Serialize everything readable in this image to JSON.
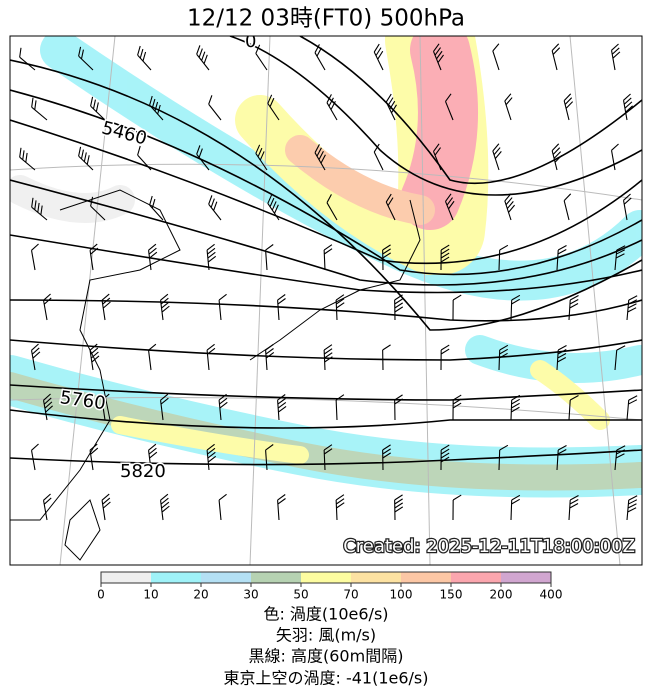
{
  "title": "12/12  03時(FT0)     500hPa",
  "map": {
    "contour_labels": [
      "0",
      "5460",
      "5760",
      "5820"
    ],
    "created": "Created: 2025-12-11T18:00:00Z"
  },
  "colorbar": {
    "ticks": [
      0,
      10,
      20,
      30,
      50,
      70,
      100,
      150,
      200,
      400
    ],
    "colors": [
      "#efefef",
      "#9ff2f8",
      "#b4e0f4",
      "#b6d2b2",
      "#fdfca0",
      "#fde2a2",
      "#fcc7a5",
      "#fba6ae",
      "#d1a6d0"
    ]
  },
  "caption": [
    "色: 渦度(10e6/s)",
    "矢羽: 風(m/s)",
    "黒線: 高度(60m間隔)",
    "東京上空の渦度: -41(1e6/s)"
  ]
}
